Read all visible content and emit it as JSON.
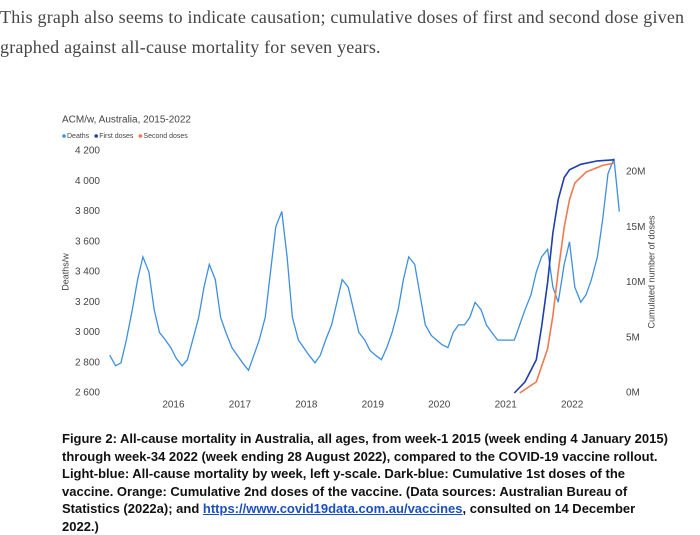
{
  "paragraph": "This graph also seems to indicate causation; cumulative doses of first and second dose given graphed against all-cause mortality for seven years.",
  "chart_data": {
    "type": "line",
    "title": "ACM/w, Australia, 2015-2022",
    "ylabel": "Deaths/w",
    "y2label": "Cumulated number of doses",
    "xlim": [
      2015,
      2022.75
    ],
    "xticks": [
      2016,
      2017,
      2018,
      2019,
      2020,
      2021,
      2022
    ],
    "ylim": [
      2600,
      4200
    ],
    "yticks": [
      {
        "value": 2600,
        "label": "2 600"
      },
      {
        "value": 2800,
        "label": "2 800"
      },
      {
        "value": 3000,
        "label": "3 000"
      },
      {
        "value": 3200,
        "label": "3 200"
      },
      {
        "value": 3400,
        "label": "3 400"
      },
      {
        "value": 3600,
        "label": "3 600"
      },
      {
        "value": 3800,
        "label": "3 800"
      },
      {
        "value": 4000,
        "label": "4 000"
      },
      {
        "value": 4200,
        "label": "4 200"
      }
    ],
    "y2lim": [
      0,
      21900000
    ],
    "y2ticks": [
      {
        "value": 0,
        "label": "0M"
      },
      {
        "value": 5000000,
        "label": "5M"
      },
      {
        "value": 10000000,
        "label": "10M"
      },
      {
        "value": 15000000,
        "label": "15M"
      },
      {
        "value": 20000000,
        "label": "20M"
      }
    ],
    "legend": "top-left",
    "series": [
      {
        "name": "Deaths",
        "color": "#3d8fe0",
        "x": [
          2015.04,
          2015.13,
          2015.21,
          2015.29,
          2015.38,
          2015.46,
          2015.54,
          2015.63,
          2015.71,
          2015.79,
          2015.88,
          2015.96,
          2016.04,
          2016.13,
          2016.21,
          2016.29,
          2016.38,
          2016.46,
          2016.54,
          2016.63,
          2016.71,
          2016.79,
          2016.88,
          2016.96,
          2017.04,
          2017.13,
          2017.21,
          2017.29,
          2017.38,
          2017.46,
          2017.54,
          2017.63,
          2017.71,
          2017.79,
          2017.88,
          2017.96,
          2018.04,
          2018.13,
          2018.21,
          2018.29,
          2018.38,
          2018.46,
          2018.54,
          2018.63,
          2018.71,
          2018.79,
          2018.88,
          2018.96,
          2019.04,
          2019.13,
          2019.21,
          2019.29,
          2019.38,
          2019.46,
          2019.54,
          2019.63,
          2019.71,
          2019.79,
          2019.88,
          2019.96,
          2020.04,
          2020.13,
          2020.21,
          2020.29,
          2020.38,
          2020.46,
          2020.54,
          2020.63,
          2020.71,
          2020.79,
          2020.88,
          2020.96,
          2021.04,
          2021.13,
          2021.21,
          2021.29,
          2021.38,
          2021.46,
          2021.54,
          2021.63,
          2021.71,
          2021.79,
          2021.88,
          2021.96,
          2022.04,
          2022.13,
          2022.21,
          2022.29,
          2022.38,
          2022.46,
          2022.54,
          2022.63,
          2022.71
        ],
        "values": [
          2850,
          2780,
          2800,
          2950,
          3150,
          3350,
          3500,
          3400,
          3150,
          3000,
          2950,
          2900,
          2830,
          2780,
          2820,
          2950,
          3100,
          3300,
          3450,
          3350,
          3100,
          3000,
          2900,
          2850,
          2800,
          2750,
          2850,
          2950,
          3100,
          3400,
          3700,
          3800,
          3500,
          3100,
          2950,
          2900,
          2850,
          2800,
          2850,
          2950,
          3050,
          3200,
          3350,
          3300,
          3150,
          3000,
          2950,
          2880,
          2850,
          2820,
          2900,
          3000,
          3150,
          3350,
          3500,
          3450,
          3250,
          3050,
          2980,
          2950,
          2920,
          2900,
          3000,
          3050,
          3050,
          3100,
          3200,
          3150,
          3050,
          3000,
          2950,
          2950,
          2950,
          2950,
          3050,
          3150,
          3250,
          3400,
          3500,
          3550,
          3300,
          3200,
          3450,
          3600,
          3300,
          3200,
          3250,
          3350,
          3500,
          3750,
          4050,
          4150,
          3800
        ]
      },
      {
        "name": "First doses",
        "color": "#1f3fa8",
        "axis": "y2",
        "x": [
          2021.13,
          2021.29,
          2021.46,
          2021.54,
          2021.63,
          2021.71,
          2021.79,
          2021.88,
          2021.96,
          2022.13,
          2022.38,
          2022.63
        ],
        "values": [
          0,
          1000000,
          3000000,
          6000000,
          10000000,
          14500000,
          17500000,
          19500000,
          20200000,
          20700000,
          21000000,
          21100000
        ]
      },
      {
        "name": "Second doses",
        "color": "#ef7a4f",
        "axis": "y2",
        "x": [
          2021.21,
          2021.46,
          2021.63,
          2021.71,
          2021.79,
          2021.88,
          2021.96,
          2022.04,
          2022.21,
          2022.46,
          2022.63
        ],
        "values": [
          0,
          1000000,
          4000000,
          7000000,
          11000000,
          15000000,
          17500000,
          19000000,
          20000000,
          20600000,
          20800000
        ]
      }
    ]
  },
  "caption": {
    "text": "Figure 2: All-cause mortality in Australia, all ages, from week-1 2015 (week ending 4 January 2015) through week-34 2022 (week ending 28 August 2022), compared to the COVID-19 vaccine rollout. Light-blue: All-cause mortality by week, left y-scale. Dark-blue: Cumulative 1st doses of the vaccine. Orange: Cumulative 2nd doses of the vaccine. (Data sources: Australian Bureau of Statistics (2022a); and",
    "link": "https://www.covid19data.com.au/vaccines",
    "end": ", consulted on 14 December 2022.)"
  }
}
